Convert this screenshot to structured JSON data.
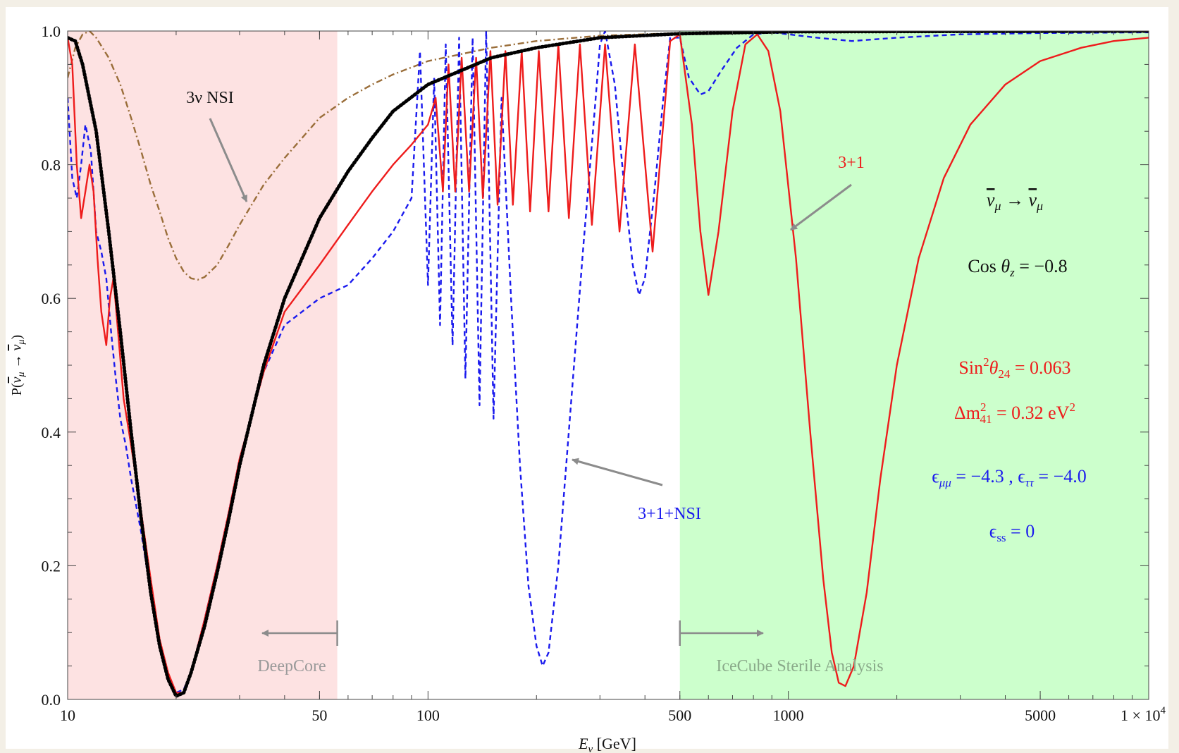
{
  "chart_data": {
    "type": "line",
    "xlabel": "E_ν [GeV]",
    "ylabel": "P(ν̄_μ → ν̄_μ)",
    "x_scale": "log",
    "xlim": [
      10,
      10000
    ],
    "ylim": [
      0,
      1
    ],
    "x_ticks": [
      {
        "value": 10,
        "label": "10"
      },
      {
        "value": 50,
        "label": "50"
      },
      {
        "value": 100,
        "label": "100"
      },
      {
        "value": 500,
        "label": "500"
      },
      {
        "value": 1000,
        "label": "1000"
      },
      {
        "value": 5000,
        "label": "5000"
      },
      {
        "value": 10000,
        "label": "1 × 10",
        "sup": "4"
      }
    ],
    "y_ticks": [
      "0.0",
      "0.2",
      "0.4",
      "0.6",
      "0.8",
      "1.0"
    ],
    "regions": [
      {
        "name": "DeepCore",
        "x_range": [
          10,
          56
        ],
        "color": "#fde2e2",
        "label_color": "#9a9a9a",
        "arrow": "left"
      },
      {
        "name": "IceCube Sterile Analysis",
        "x_range": [
          500,
          10000
        ],
        "color": "#ccffcc",
        "label_color": "#8aaa8a",
        "arrow": "right"
      }
    ],
    "series": [
      {
        "key": "sm",
        "style": "dotted",
        "color": "#000000",
        "points": [
          [
            10,
            0.99
          ],
          [
            10.5,
            0.985
          ],
          [
            11,
            0.95
          ],
          [
            12,
            0.85
          ],
          [
            13,
            0.7
          ],
          [
            14,
            0.55
          ],
          [
            15,
            0.4
          ],
          [
            16,
            0.27
          ],
          [
            17,
            0.16
          ],
          [
            18,
            0.08
          ],
          [
            19,
            0.03
          ],
          [
            20,
            0.005
          ],
          [
            21,
            0.01
          ],
          [
            22,
            0.04
          ],
          [
            24,
            0.11
          ],
          [
            26,
            0.19
          ],
          [
            28,
            0.27
          ],
          [
            30,
            0.35
          ],
          [
            35,
            0.5
          ],
          [
            40,
            0.6
          ],
          [
            50,
            0.72
          ],
          [
            60,
            0.79
          ],
          [
            70,
            0.84
          ],
          [
            80,
            0.88
          ],
          [
            100,
            0.92
          ],
          [
            150,
            0.96
          ],
          [
            200,
            0.975
          ],
          [
            300,
            0.99
          ],
          [
            500,
            0.996
          ],
          [
            1000,
            0.999
          ],
          [
            10000,
            1.0
          ]
        ]
      },
      {
        "key": "nsi3",
        "name": "3ν NSI",
        "style": "dashdot",
        "color": "#9a6e3a",
        "points": [
          [
            10,
            0.93
          ],
          [
            10.5,
            0.975
          ],
          [
            11,
            0.995
          ],
          [
            11.5,
            1.0
          ],
          [
            12,
            0.99
          ],
          [
            13,
            0.96
          ],
          [
            14,
            0.92
          ],
          [
            15,
            0.87
          ],
          [
            16,
            0.82
          ],
          [
            17,
            0.77
          ],
          [
            18,
            0.73
          ],
          [
            19,
            0.69
          ],
          [
            20,
            0.66
          ],
          [
            21,
            0.64
          ],
          [
            22,
            0.63
          ],
          [
            23,
            0.628
          ],
          [
            24,
            0.632
          ],
          [
            26,
            0.65
          ],
          [
            28,
            0.68
          ],
          [
            30,
            0.71
          ],
          [
            35,
            0.77
          ],
          [
            40,
            0.81
          ],
          [
            50,
            0.87
          ],
          [
            60,
            0.9
          ],
          [
            70,
            0.92
          ],
          [
            80,
            0.935
          ],
          [
            100,
            0.955
          ],
          [
            150,
            0.975
          ],
          [
            200,
            0.985
          ],
          [
            300,
            0.993
          ],
          [
            500,
            0.997
          ],
          [
            1000,
            0.999
          ],
          [
            10000,
            1.0
          ]
        ]
      },
      {
        "key": "s31",
        "name": "3+1",
        "style": "solid",
        "color": "#ee1c1c",
        "points": [
          [
            10,
            0.99
          ],
          [
            10.3,
            0.95
          ],
          [
            10.6,
            0.8
          ],
          [
            10.9,
            0.72
          ],
          [
            11.2,
            0.76
          ],
          [
            11.5,
            0.8
          ],
          [
            11.8,
            0.76
          ],
          [
            12.1,
            0.66
          ],
          [
            12.4,
            0.58
          ],
          [
            12.8,
            0.53
          ],
          [
            13.1,
            0.6
          ],
          [
            13.4,
            0.63
          ],
          [
            13.8,
            0.55
          ],
          [
            14.3,
            0.45
          ],
          [
            14.8,
            0.4
          ],
          [
            15.3,
            0.35
          ],
          [
            16,
            0.28
          ],
          [
            17,
            0.18
          ],
          [
            18,
            0.09
          ],
          [
            19,
            0.04
          ],
          [
            20,
            0.01
          ],
          [
            21,
            0.01
          ],
          [
            22,
            0.04
          ],
          [
            24,
            0.12
          ],
          [
            26,
            0.2
          ],
          [
            28,
            0.28
          ],
          [
            30,
            0.36
          ],
          [
            35,
            0.49
          ],
          [
            40,
            0.58
          ],
          [
            50,
            0.65
          ],
          [
            60,
            0.71
          ],
          [
            70,
            0.76
          ],
          [
            80,
            0.8
          ],
          [
            90,
            0.83
          ],
          [
            100,
            0.86
          ],
          [
            105,
            0.9
          ],
          [
            110,
            0.76
          ],
          [
            114,
            0.95
          ],
          [
            119,
            0.76
          ],
          [
            124,
            0.96
          ],
          [
            130,
            0.76
          ],
          [
            136,
            0.96
          ],
          [
            142,
            0.75
          ],
          [
            149,
            0.97
          ],
          [
            156,
            0.74
          ],
          [
            164,
            0.97
          ],
          [
            172,
            0.74
          ],
          [
            182,
            0.97
          ],
          [
            192,
            0.73
          ],
          [
            203,
            0.97
          ],
          [
            216,
            0.73
          ],
          [
            230,
            0.98
          ],
          [
            246,
            0.72
          ],
          [
            264,
            0.98
          ],
          [
            285,
            0.71
          ],
          [
            310,
            0.98
          ],
          [
            340,
            0.7
          ],
          [
            375,
            0.98
          ],
          [
            420,
            0.67
          ],
          [
            470,
            0.985
          ],
          [
            500,
            0.995
          ],
          [
            540,
            0.86
          ],
          [
            570,
            0.7
          ],
          [
            600,
            0.605
          ],
          [
            640,
            0.7
          ],
          [
            700,
            0.88
          ],
          [
            760,
            0.98
          ],
          [
            820,
            0.995
          ],
          [
            880,
            0.97
          ],
          [
            950,
            0.88
          ],
          [
            1050,
            0.66
          ],
          [
            1150,
            0.4
          ],
          [
            1250,
            0.18
          ],
          [
            1320,
            0.07
          ],
          [
            1380,
            0.025
          ],
          [
            1440,
            0.02
          ],
          [
            1520,
            0.05
          ],
          [
            1650,
            0.16
          ],
          [
            1800,
            0.33
          ],
          [
            2000,
            0.5
          ],
          [
            2300,
            0.66
          ],
          [
            2700,
            0.78
          ],
          [
            3200,
            0.86
          ],
          [
            4000,
            0.92
          ],
          [
            5000,
            0.955
          ],
          [
            6500,
            0.975
          ],
          [
            8000,
            0.985
          ],
          [
            10000,
            0.99
          ]
        ]
      },
      {
        "key": "s31nsi",
        "name": "3+1+NSI",
        "style": "dashed",
        "color": "#1a1aee",
        "points": [
          [
            10,
            0.9
          ],
          [
            10.3,
            0.78
          ],
          [
            10.6,
            0.75
          ],
          [
            10.9,
            0.8
          ],
          [
            11.2,
            0.86
          ],
          [
            11.6,
            0.82
          ],
          [
            12,
            0.7
          ],
          [
            12.4,
            0.67
          ],
          [
            12.8,
            0.63
          ],
          [
            13.2,
            0.55
          ],
          [
            13.6,
            0.48
          ],
          [
            14,
            0.42
          ],
          [
            14.5,
            0.38
          ],
          [
            15,
            0.33
          ],
          [
            16,
            0.25
          ],
          [
            17,
            0.16
          ],
          [
            18,
            0.08
          ],
          [
            19,
            0.03
          ],
          [
            20,
            0.01
          ],
          [
            21,
            0.015
          ],
          [
            22,
            0.04
          ],
          [
            24,
            0.12
          ],
          [
            26,
            0.2
          ],
          [
            28,
            0.28
          ],
          [
            30,
            0.36
          ],
          [
            35,
            0.49
          ],
          [
            40,
            0.56
          ],
          [
            50,
            0.6
          ],
          [
            60,
            0.62
          ],
          [
            70,
            0.66
          ],
          [
            80,
            0.7
          ],
          [
            90,
            0.75
          ],
          [
            95,
            0.97
          ],
          [
            100,
            0.62
          ],
          [
            104,
            0.93
          ],
          [
            108,
            0.56
          ],
          [
            112,
            0.98
          ],
          [
            117,
            0.53
          ],
          [
            122,
            0.99
          ],
          [
            127,
            0.48
          ],
          [
            133,
            0.99
          ],
          [
            139,
            0.44
          ],
          [
            145,
            1.0
          ],
          [
            152,
            0.42
          ],
          [
            160,
            0.9
          ],
          [
            170,
            0.6
          ],
          [
            180,
            0.35
          ],
          [
            190,
            0.17
          ],
          [
            200,
            0.08
          ],
          [
            208,
            0.05
          ],
          [
            216,
            0.07
          ],
          [
            230,
            0.2
          ],
          [
            250,
            0.45
          ],
          [
            270,
            0.68
          ],
          [
            290,
            0.88
          ],
          [
            300,
            0.98
          ],
          [
            310,
            1.0
          ],
          [
            330,
            0.92
          ],
          [
            350,
            0.77
          ],
          [
            370,
            0.65
          ],
          [
            385,
            0.605
          ],
          [
            400,
            0.63
          ],
          [
            425,
            0.76
          ],
          [
            450,
            0.9
          ],
          [
            470,
            0.99
          ],
          [
            500,
            0.99
          ],
          [
            530,
            0.93
          ],
          [
            570,
            0.905
          ],
          [
            600,
            0.91
          ],
          [
            650,
            0.94
          ],
          [
            720,
            0.975
          ],
          [
            800,
            0.995
          ],
          [
            900,
            0.998
          ],
          [
            1200,
            0.99
          ],
          [
            1500,
            0.985
          ],
          [
            2000,
            0.99
          ],
          [
            3000,
            0.995
          ],
          [
            5000,
            0.997
          ],
          [
            10000,
            0.998
          ]
        ]
      }
    ],
    "annotations": {
      "nsi_label": "3ν NSI",
      "sterile_label": "3+1",
      "combo_label": "3+1+NSI",
      "channel": "ν̄_μ → ν̄_μ",
      "cos_theta": "Cos θ_z = −0.8",
      "sin2": "Sin²θ24 = 0.063",
      "dm2": "Δm²41 = 0.32 eV²",
      "eps": "ϵμμ = −4.3 , ϵττ = −4.0",
      "eps_ss": "ϵss = 0"
    },
    "grid": false,
    "legend": "none"
  }
}
